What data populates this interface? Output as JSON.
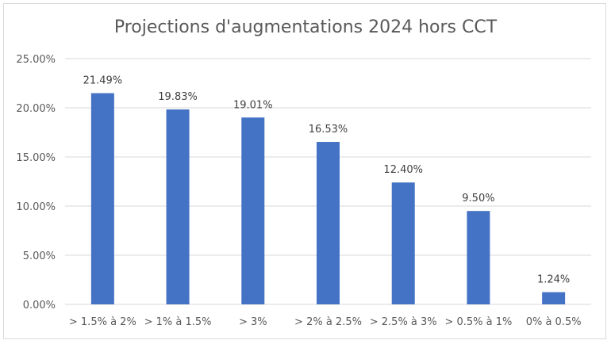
{
  "chart_data": {
    "type": "bar",
    "title": "Projections d'augmentations 2024 hors CCT",
    "categories": [
      "> 1.5% à 2%",
      "> 1% à 1.5%",
      "> 3%",
      "> 2% à 2.5%",
      "> 2.5% à 3%",
      "> 0.5% à 1%",
      "0% à 0.5%"
    ],
    "values": [
      21.49,
      19.83,
      19.01,
      16.53,
      12.4,
      9.5,
      1.24
    ],
    "data_labels": [
      "21.49%",
      "19.83%",
      "19.01%",
      "16.53%",
      "12.40%",
      "9.50%",
      "1.24%"
    ],
    "y_ticks": [
      "0.00%",
      "5.00%",
      "10.00%",
      "15.00%",
      "20.00%",
      "25.00%"
    ],
    "ylim": [
      0,
      25
    ],
    "grid": true,
    "bar_color": "#4472c4",
    "grid_color": "#d9d9d9"
  }
}
